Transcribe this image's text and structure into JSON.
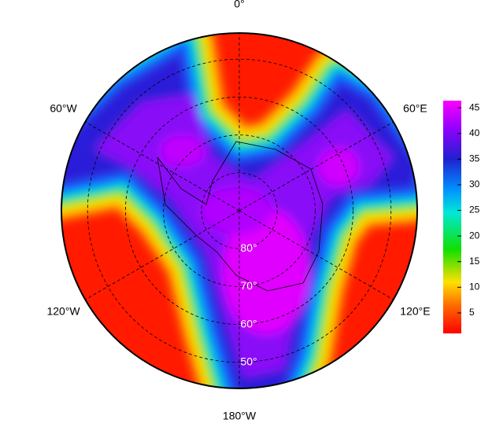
{
  "map": {
    "lon_labels": [
      {
        "value": 0,
        "label": "0°"
      },
      {
        "value": 60,
        "label": "60°E"
      },
      {
        "value": 120,
        "label": "120°E"
      },
      {
        "value": 180,
        "label": "180°W"
      },
      {
        "value": -120,
        "label": "120°W"
      },
      {
        "value": -60,
        "label": "60°W"
      }
    ],
    "lat_labels": [
      {
        "value": 80,
        "label": "80°"
      },
      {
        "value": 70,
        "label": "70°"
      },
      {
        "value": 60,
        "label": "60°"
      },
      {
        "value": 50,
        "label": "50°"
      }
    ],
    "lat_lim": [
      90,
      43.1
    ],
    "colorbar": {
      "lim": [
        1,
        46.4
      ],
      "ticks": [
        5,
        10,
        15,
        20,
        25,
        30,
        35,
        40,
        45
      ]
    }
  }
}
